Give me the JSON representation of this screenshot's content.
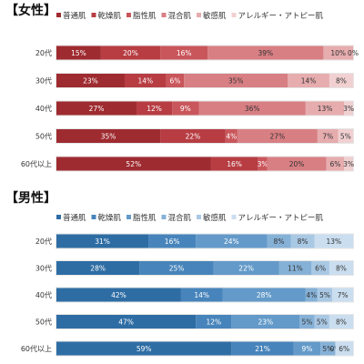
{
  "chart_data": [
    {
      "type": "bar",
      "title": "【女性】",
      "stacked": "100%",
      "orientation": "horizontal",
      "legend_position": "top",
      "categories": [
        "20代",
        "30代",
        "40代",
        "50代",
        "60代以上"
      ],
      "series": [
        {
          "name": "普通肌",
          "color": "#9e2b30",
          "values": [
            15,
            23,
            27,
            35,
            52
          ]
        },
        {
          "name": "乾燥肌",
          "color": "#b73d43",
          "values": [
            20,
            14,
            12,
            22,
            16
          ]
        },
        {
          "name": "脂性肌",
          "color": "#c9565b",
          "values": [
            16,
            6,
            9,
            4,
            3
          ]
        },
        {
          "name": "混合肌",
          "color": "#d87f83",
          "values": [
            39,
            35,
            36,
            27,
            20
          ]
        },
        {
          "name": "敏感肌",
          "color": "#e6acae",
          "values": [
            10,
            14,
            13,
            7,
            6
          ]
        },
        {
          "name": "アレルギー・アトピー肌",
          "color": "#f1d0d1",
          "values": [
            0,
            8,
            3,
            5,
            3
          ]
        }
      ]
    },
    {
      "type": "bar",
      "title": "【男性】",
      "stacked": "100%",
      "orientation": "horizontal",
      "legend_position": "top",
      "categories": [
        "20代",
        "30代",
        "40代",
        "50代",
        "60代以上"
      ],
      "series": [
        {
          "name": "普通肌",
          "color": "#2e6da4",
          "values": [
            31,
            28,
            42,
            47,
            59
          ]
        },
        {
          "name": "乾燥肌",
          "color": "#4784bb",
          "values": [
            16,
            25,
            14,
            12,
            21
          ]
        },
        {
          "name": "脂性肌",
          "color": "#639ac9",
          "values": [
            24,
            22,
            28,
            23,
            9
          ]
        },
        {
          "name": "混合肌",
          "color": "#86b1d7",
          "values": [
            8,
            11,
            4,
            5,
            5
          ]
        },
        {
          "name": "敏感肌",
          "color": "#a9c8e4",
          "values": [
            8,
            6,
            5,
            5,
            0
          ]
        },
        {
          "name": "アレルギー・アトピー肌",
          "color": "#cadef0",
          "values": [
            13,
            8,
            7,
            8,
            6
          ]
        }
      ]
    }
  ]
}
